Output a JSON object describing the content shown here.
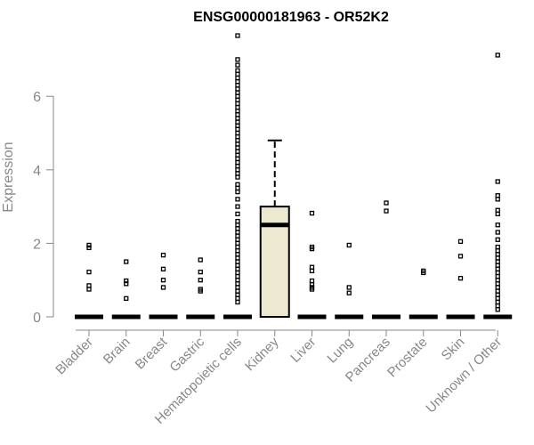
{
  "chart_data": {
    "type": "boxplot",
    "title": "ENSG00000181963 - OR52K2",
    "ylabel": "Expression",
    "xlabel": "",
    "ylim": [
      0,
      7.6
    ],
    "yticks": [
      0,
      2,
      4,
      6
    ],
    "grid": false,
    "categories": [
      "Bladder",
      "Brain",
      "Breast",
      "Gastric",
      "Hematopoietic cells",
      "Kidney",
      "Liver",
      "Lung",
      "Pancreas",
      "Prostate",
      "Skin",
      "Unknown / Other"
    ],
    "box_fill": "#EDE8D0",
    "boxes": [
      {
        "category": "Bladder",
        "q1": 0,
        "median": 0,
        "q3": 0,
        "whisker_low": 0,
        "whisker_high": 0,
        "outliers": [
          1.95,
          1.88,
          1.22,
          0.85,
          0.75
        ]
      },
      {
        "category": "Brain",
        "q1": 0,
        "median": 0,
        "q3": 0,
        "whisker_low": 0,
        "whisker_high": 0,
        "outliers": [
          1.5,
          0.98,
          0.9,
          0.5
        ]
      },
      {
        "category": "Breast",
        "q1": 0,
        "median": 0,
        "q3": 0,
        "whisker_low": 0,
        "whisker_high": 0,
        "outliers": [
          1.68,
          1.3,
          1.0,
          0.8
        ]
      },
      {
        "category": "Gastric",
        "q1": 0,
        "median": 0,
        "q3": 0,
        "whisker_low": 0,
        "whisker_high": 0,
        "outliers": [
          1.55,
          1.22,
          1.0,
          0.75,
          0.7
        ]
      },
      {
        "category": "Hematopoietic cells",
        "q1": 0,
        "median": 0,
        "q3": 0,
        "whisker_low": 0,
        "whisker_high": 0,
        "outliers": [
          7.65,
          7.0,
          6.85,
          6.7,
          6.6,
          6.5,
          6.4,
          6.3,
          6.2,
          6.1,
          6.0,
          5.9,
          5.8,
          5.7,
          5.6,
          5.5,
          5.4,
          5.3,
          5.2,
          5.1,
          5.0,
          4.9,
          4.8,
          4.7,
          4.6,
          4.5,
          4.4,
          4.3,
          4.2,
          4.1,
          4.0,
          3.9,
          3.8,
          3.6,
          3.5,
          3.4,
          3.2,
          3.0,
          2.8,
          2.6,
          2.5,
          2.4,
          2.3,
          2.2,
          2.1,
          2.0,
          1.9,
          1.8,
          1.7,
          1.6,
          1.5,
          1.4,
          1.3,
          1.2,
          1.1,
          1.0,
          0.9,
          0.8,
          0.7,
          0.6,
          0.5,
          0.4
        ]
      },
      {
        "category": "Kidney",
        "q1": 0,
        "median": 2.5,
        "q3": 3.0,
        "whisker_low": 0,
        "whisker_high": 4.8,
        "outliers": []
      },
      {
        "category": "Liver",
        "q1": 0,
        "median": 0,
        "q3": 0,
        "whisker_low": 0,
        "whisker_high": 0,
        "outliers": [
          2.82,
          1.9,
          1.85,
          1.35,
          1.25,
          0.98,
          0.88,
          0.8,
          0.75
        ]
      },
      {
        "category": "Lung",
        "q1": 0,
        "median": 0,
        "q3": 0,
        "whisker_low": 0,
        "whisker_high": 0,
        "outliers": [
          1.95,
          0.8,
          0.65
        ]
      },
      {
        "category": "Pancreas",
        "q1": 0,
        "median": 0,
        "q3": 0,
        "whisker_low": 0,
        "whisker_high": 0,
        "outliers": [
          3.1,
          2.88
        ]
      },
      {
        "category": "Prostate",
        "q1": 0,
        "median": 0,
        "q3": 0,
        "whisker_low": 0,
        "whisker_high": 0,
        "outliers": [
          1.25,
          1.2
        ]
      },
      {
        "category": "Skin",
        "q1": 0,
        "median": 0,
        "q3": 0,
        "whisker_low": 0,
        "whisker_high": 0,
        "outliers": [
          2.05,
          1.65,
          1.05
        ]
      },
      {
        "category": "Unknown / Other",
        "q1": 0,
        "median": 0,
        "q3": 0,
        "whisker_low": 0,
        "whisker_high": 0,
        "outliers": [
          7.12,
          3.68,
          3.3,
          3.2,
          2.9,
          2.8,
          2.5,
          2.3,
          2.1,
          1.9,
          1.8,
          1.7,
          1.6,
          1.5,
          1.4,
          1.3,
          1.2,
          1.1,
          1.0,
          0.9,
          0.8,
          0.7,
          0.6,
          0.5,
          0.4,
          0.3,
          0.2
        ]
      }
    ]
  }
}
